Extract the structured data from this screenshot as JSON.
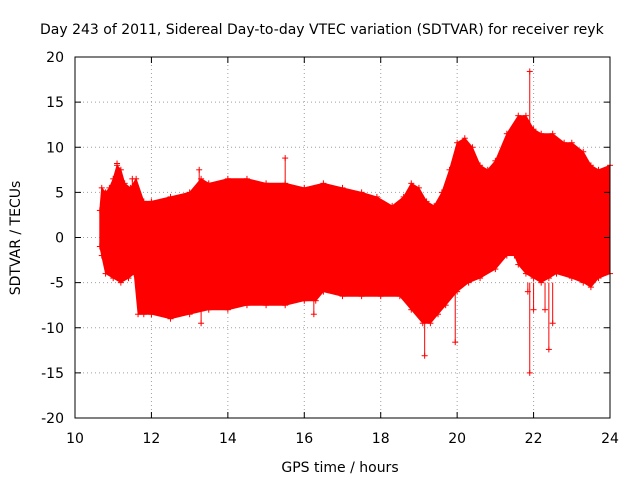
{
  "chart_data": {
    "type": "scatter",
    "title": "Day 243 of 2011, Sidereal Day-to-day VTEC variation (SDTVAR) for receiver reyk",
    "xlabel": "GPS time / hours",
    "ylabel": "SDTVAR / TECUs",
    "xlim": [
      10,
      24
    ],
    "ylim": [
      -20,
      20
    ],
    "xticks": [
      10,
      12,
      14,
      16,
      18,
      20,
      22,
      24
    ],
    "yticks": [
      -20,
      -15,
      -10,
      -5,
      0,
      5,
      10,
      15,
      20
    ],
    "xtick_labels": [
      "10",
      "12",
      "14",
      "16",
      "18",
      "20",
      "22",
      "24"
    ],
    "ytick_labels": [
      "-20",
      "-15",
      "-10",
      "-5",
      "0",
      "5",
      "10",
      "15",
      "20"
    ],
    "grid": true,
    "grid_style": "dotted",
    "color": "#ff0000",
    "series": [
      {
        "upper_envelope": [
          [
            10.65,
            3.0
          ],
          [
            10.7,
            5.5
          ],
          [
            10.8,
            5.0
          ],
          [
            10.9,
            5.5
          ],
          [
            11.0,
            6.5
          ],
          [
            11.1,
            8.0
          ],
          [
            11.2,
            7.5
          ],
          [
            11.3,
            6.0
          ],
          [
            11.45,
            5.5
          ],
          [
            11.6,
            6.5
          ],
          [
            11.8,
            4.0
          ],
          [
            12.0,
            4.0
          ],
          [
            12.5,
            4.5
          ],
          [
            13.0,
            5.0
          ],
          [
            13.3,
            6.5
          ],
          [
            13.5,
            6.0
          ],
          [
            14.0,
            6.5
          ],
          [
            14.5,
            6.5
          ],
          [
            15.0,
            6.0
          ],
          [
            15.5,
            6.0
          ],
          [
            16.0,
            5.5
          ],
          [
            16.5,
            6.0
          ],
          [
            17.0,
            5.5
          ],
          [
            17.5,
            5.0
          ],
          [
            17.9,
            4.5
          ],
          [
            18.3,
            3.5
          ],
          [
            18.6,
            4.5
          ],
          [
            18.8,
            6.0
          ],
          [
            19.0,
            5.5
          ],
          [
            19.2,
            4.0
          ],
          [
            19.4,
            3.5
          ],
          [
            19.6,
            5.0
          ],
          [
            19.8,
            7.5
          ],
          [
            20.0,
            10.5
          ],
          [
            20.2,
            11.0
          ],
          [
            20.4,
            10.0
          ],
          [
            20.6,
            8.0
          ],
          [
            20.8,
            7.5
          ],
          [
            21.0,
            8.5
          ],
          [
            21.3,
            11.5
          ],
          [
            21.6,
            13.5
          ],
          [
            21.8,
            13.5
          ],
          [
            22.0,
            12.0
          ],
          [
            22.2,
            11.5
          ],
          [
            22.5,
            11.5
          ],
          [
            22.8,
            10.5
          ],
          [
            23.0,
            10.5
          ],
          [
            23.3,
            9.5
          ],
          [
            23.5,
            8.0
          ],
          [
            23.7,
            7.5
          ],
          [
            24.0,
            8.0
          ]
        ],
        "lower_envelope": [
          [
            10.65,
            -1.0
          ],
          [
            10.7,
            -2.0
          ],
          [
            10.8,
            -4.0
          ],
          [
            11.0,
            -4.5
          ],
          [
            11.2,
            -5.0
          ],
          [
            11.4,
            -4.5
          ],
          [
            11.55,
            -4.0
          ],
          [
            11.65,
            -8.5
          ],
          [
            11.8,
            -8.5
          ],
          [
            12.0,
            -8.5
          ],
          [
            12.5,
            -9.0
          ],
          [
            13.0,
            -8.5
          ],
          [
            13.5,
            -8.0
          ],
          [
            14.0,
            -8.0
          ],
          [
            14.5,
            -7.5
          ],
          [
            15.0,
            -7.5
          ],
          [
            15.5,
            -7.5
          ],
          [
            16.0,
            -7.0
          ],
          [
            16.3,
            -7.0
          ],
          [
            16.5,
            -6.0
          ],
          [
            17.0,
            -6.5
          ],
          [
            17.5,
            -6.5
          ],
          [
            18.0,
            -6.5
          ],
          [
            18.5,
            -6.5
          ],
          [
            18.8,
            -8.0
          ],
          [
            19.1,
            -9.5
          ],
          [
            19.3,
            -9.5
          ],
          [
            19.5,
            -8.5
          ],
          [
            19.7,
            -7.5
          ],
          [
            20.0,
            -6.0
          ],
          [
            20.3,
            -5.0
          ],
          [
            20.6,
            -4.5
          ],
          [
            21.0,
            -3.5
          ],
          [
            21.3,
            -2.0
          ],
          [
            21.5,
            -2.0
          ],
          [
            21.6,
            -3.0
          ],
          [
            21.8,
            -4.0
          ],
          [
            22.0,
            -4.5
          ],
          [
            22.2,
            -5.0
          ],
          [
            22.4,
            -4.5
          ],
          [
            22.6,
            -4.0
          ],
          [
            23.0,
            -4.5
          ],
          [
            23.3,
            -5.0
          ],
          [
            23.5,
            -5.5
          ],
          [
            23.7,
            -4.5
          ],
          [
            24.0,
            -4.0
          ]
        ],
        "outliers": [
          [
            11.1,
            8.2
          ],
          [
            11.5,
            6.5
          ],
          [
            13.25,
            7.5
          ],
          [
            13.3,
            -9.5
          ],
          [
            15.5,
            8.8
          ],
          [
            16.25,
            -8.5
          ],
          [
            19.15,
            -13.1
          ],
          [
            19.95,
            -11.6
          ],
          [
            21.9,
            18.4
          ],
          [
            21.9,
            -15.0
          ],
          [
            21.85,
            -6.0
          ],
          [
            22.3,
            -8.0
          ],
          [
            22.4,
            -12.4
          ],
          [
            22.5,
            -9.5
          ],
          [
            22.0,
            -8.0
          ]
        ]
      }
    ]
  }
}
